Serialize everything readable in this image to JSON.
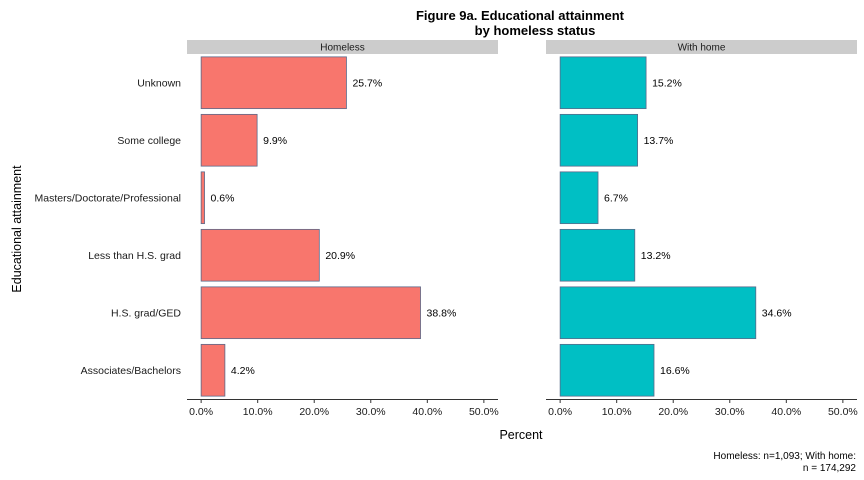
{
  "chart_data": {
    "type": "bar",
    "orientation": "horizontal",
    "title_line1": "Figure 9a. Educational attainment",
    "title_line2": "by homeless status",
    "xlabel": "Percent",
    "ylabel": "Educational attainment",
    "xlim": [
      0,
      50
    ],
    "x_ticks": [
      "0.0%",
      "10.0%",
      "20.0%",
      "30.0%",
      "40.0%",
      "50.0%"
    ],
    "x_tick_values": [
      0,
      10,
      20,
      30,
      40,
      50
    ],
    "grid": false,
    "categories": [
      "Unknown",
      "Some college",
      "Masters/Doctorate/Professional",
      "Less than H.S. grad",
      "H.S. grad/GED",
      "Associates/Bachelors"
    ],
    "panels": [
      {
        "name": "Homeless",
        "color": "#F8766D",
        "values": [
          25.7,
          9.9,
          0.6,
          20.9,
          38.8,
          4.2
        ],
        "labels": [
          "25.7%",
          "9.9%",
          "0.6%",
          "20.9%",
          "38.8%",
          "4.2%"
        ]
      },
      {
        "name": "With home",
        "color": "#00BFC4",
        "values": [
          15.2,
          13.7,
          6.7,
          13.2,
          34.6,
          16.6
        ],
        "labels": [
          "15.2%",
          "13.7%",
          "6.7%",
          "13.2%",
          "34.6%",
          "16.6%"
        ]
      }
    ],
    "caption_line1": "Homeless: n=1,093; With home:",
    "caption_line2": "n = 174,292"
  }
}
